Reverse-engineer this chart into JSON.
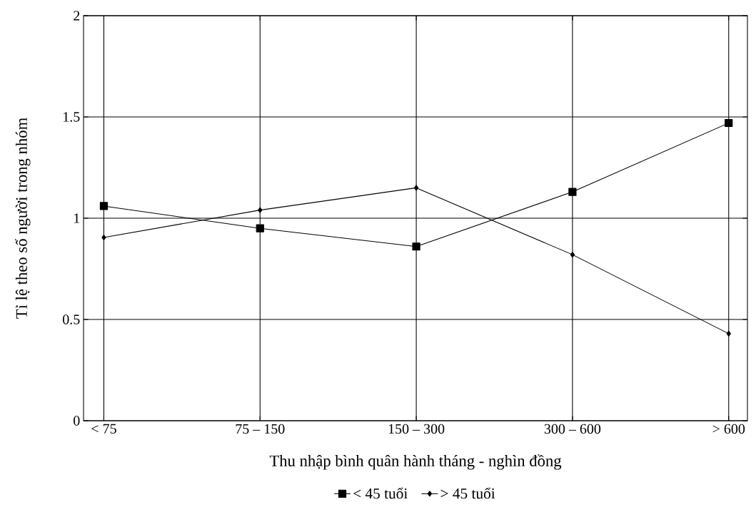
{
  "chart_data": {
    "type": "line",
    "xlabel": "Thu nhập bình quân hành tháng - nghìn đồng",
    "ylabel": "Tỉ lệ theo số người trong nhóm",
    "categories": [
      "< 75",
      "75 – 150",
      "150 – 300",
      "300 – 600",
      "> 600"
    ],
    "series": [
      {
        "name": "< 45 tuổi",
        "color": "#000000",
        "marker": "square",
        "values": [
          1.06,
          0.95,
          0.86,
          1.13,
          1.47
        ]
      },
      {
        "name": "> 45 tuổi",
        "color": "#000000",
        "marker": "diamond",
        "values": [
          0.905,
          1.04,
          1.15,
          0.82,
          0.43
        ]
      }
    ],
    "ylim": [
      0,
      2
    ],
    "yticks": [
      0,
      0.5,
      1,
      1.5,
      2
    ],
    "grid": true,
    "legend": "bottom",
    "line_style": "solid"
  }
}
